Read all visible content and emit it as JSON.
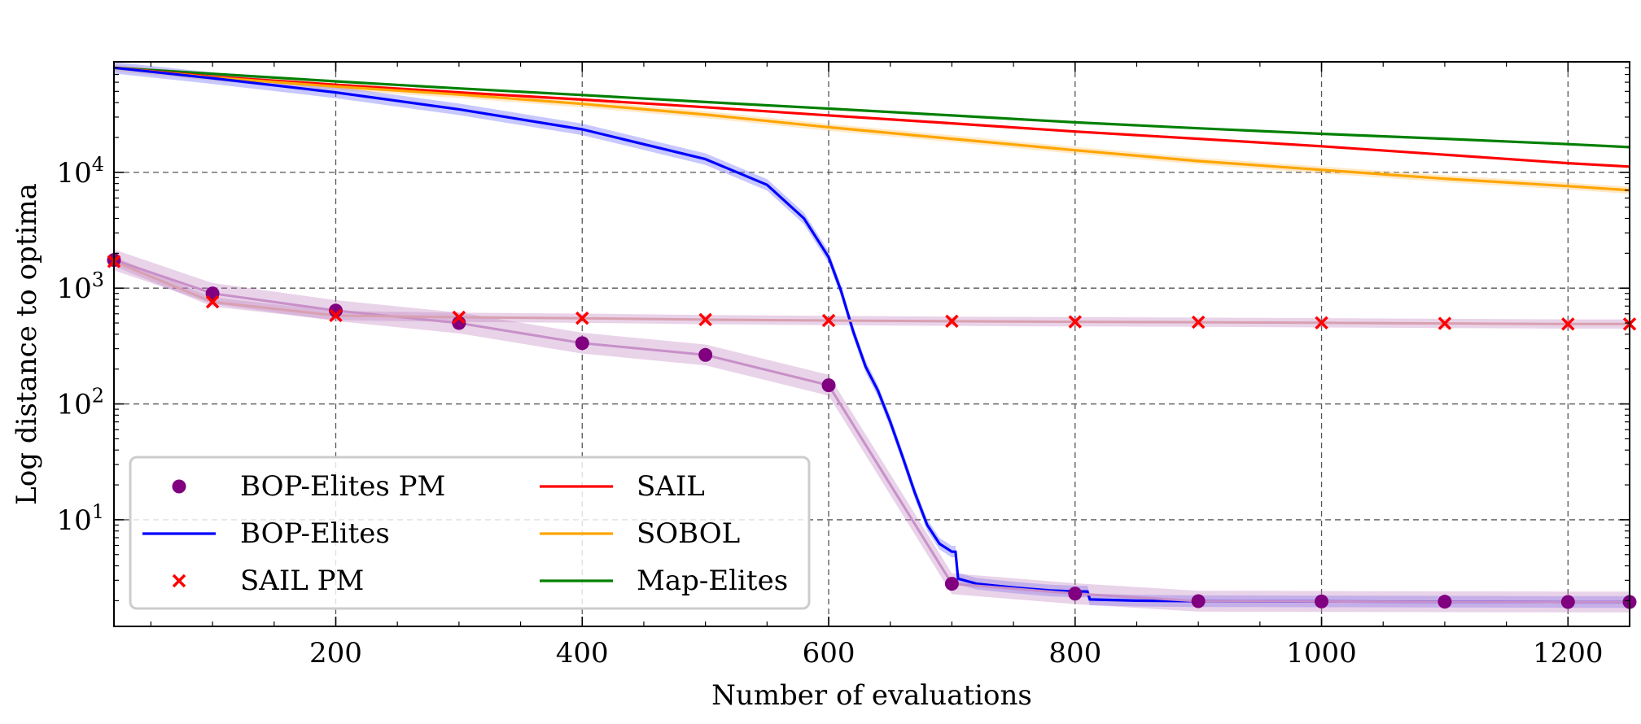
{
  "chart_data": {
    "type": "line",
    "title": "",
    "xlabel": "Number of evaluations",
    "ylabel": "Log distance to optima",
    "xlim": [
      20,
      1250
    ],
    "ylim": [
      1.2,
      90000
    ],
    "yscale": "log",
    "grid": true,
    "legend_position": "bottom-left",
    "x_ticks": [
      {
        "value": 200,
        "label": "200"
      },
      {
        "value": 400,
        "label": "400"
      },
      {
        "value": 600,
        "label": "600"
      },
      {
        "value": 800,
        "label": "800"
      },
      {
        "value": 1000,
        "label": "1000"
      },
      {
        "value": 1200,
        "label": "1200"
      }
    ],
    "y_ticks": [
      {
        "value": 10,
        "base": "10",
        "exp": "1"
      },
      {
        "value": 100,
        "base": "10",
        "exp": "2"
      },
      {
        "value": 1000,
        "base": "10",
        "exp": "3"
      },
      {
        "value": 10000,
        "base": "10",
        "exp": "4"
      }
    ],
    "series": [
      {
        "name": "Map-Elites",
        "style": "line",
        "color": "#008000",
        "x": [
          20,
          100,
          200,
          300,
          400,
          500,
          600,
          700,
          800,
          900,
          1000,
          1100,
          1200,
          1250
        ],
        "values": [
          80000,
          71000,
          61000,
          53000,
          46500,
          40500,
          35500,
          31000,
          27000,
          24000,
          21500,
          19500,
          17500,
          16500
        ]
      },
      {
        "name": "SAIL",
        "style": "line",
        "color": "#ff0000",
        "x": [
          20,
          100,
          200,
          300,
          400,
          500,
          600,
          700,
          800,
          900,
          1000,
          1100,
          1200,
          1250
        ],
        "values": [
          80000,
          67000,
          57000,
          49000,
          42500,
          36500,
          31000,
          26500,
          22500,
          19500,
          16800,
          14200,
          12000,
          11200
        ]
      },
      {
        "name": "SOBOL",
        "style": "line",
        "color": "#ffa500",
        "x": [
          20,
          100,
          200,
          300,
          400,
          500,
          600,
          700,
          800,
          900,
          1000,
          1100,
          1200,
          1250
        ],
        "values": [
          80000,
          66000,
          55000,
          47000,
          39000,
          31500,
          24500,
          19500,
          15500,
          12500,
          10500,
          8800,
          7600,
          7000
        ]
      },
      {
        "name": "BOP-Elites",
        "style": "line",
        "color": "#0000ff",
        "x": [
          20,
          100,
          200,
          300,
          400,
          500,
          550,
          580,
          600,
          610,
          620,
          630,
          640,
          650,
          660,
          670,
          680,
          690,
          700,
          703,
          705,
          720,
          750,
          780,
          800,
          810,
          812,
          850,
          900,
          1000,
          1100,
          1200,
          1250
        ],
        "values": [
          80000,
          65000,
          49000,
          35000,
          23500,
          13000,
          7800,
          4000,
          1850,
          950,
          420,
          210,
          130,
          70,
          35,
          17,
          9,
          6.2,
          5.3,
          5.3,
          3.1,
          2.8,
          2.6,
          2.45,
          2.4,
          2.4,
          2.05,
          2.0,
          1.98,
          1.97,
          1.96,
          1.95,
          1.95
        ]
      },
      {
        "name": "BOP-Elites PM",
        "style": "line+markers",
        "marker": "circle",
        "color": "#800080",
        "x": [
          20,
          100,
          200,
          300,
          400,
          500,
          600,
          700,
          800,
          900,
          1000,
          1100,
          1200,
          1250
        ],
        "values": [
          1750,
          900,
          640,
          500,
          335,
          265,
          145,
          2.8,
          2.3,
          1.98,
          1.97,
          1.96,
          1.95,
          1.95
        ]
      },
      {
        "name": "SAIL PM",
        "style": "line+markers",
        "marker": "x",
        "color": "#ff0000",
        "x": [
          20,
          100,
          200,
          300,
          400,
          500,
          600,
          700,
          800,
          900,
          1000,
          1100,
          1200,
          1250
        ],
        "values": [
          1700,
          760,
          580,
          560,
          550,
          535,
          525,
          518,
          512,
          508,
          502,
          496,
          490,
          490
        ]
      }
    ],
    "legend": [
      {
        "label": "BOP-Elites PM",
        "marker": "circle",
        "color": "#800080"
      },
      {
        "label": "BOP-Elites",
        "marker": "line",
        "color": "#0000ff"
      },
      {
        "label": "SAIL PM",
        "marker": "x",
        "color": "#ff0000"
      },
      {
        "label": "SAIL",
        "marker": "line",
        "color": "#ff0000"
      },
      {
        "label": "SOBOL",
        "marker": "line",
        "color": "#ffa500"
      },
      {
        "label": "Map-Elites",
        "marker": "line",
        "color": "#008000"
      }
    ]
  }
}
